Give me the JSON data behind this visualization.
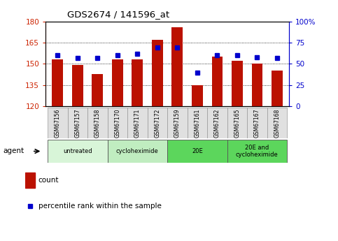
{
  "title": "GDS2674 / 141596_at",
  "samples": [
    "GSM67156",
    "GSM67157",
    "GSM67158",
    "GSM67170",
    "GSM67171",
    "GSM67172",
    "GSM67159",
    "GSM67161",
    "GSM67162",
    "GSM67165",
    "GSM67167",
    "GSM67168"
  ],
  "bar_values": [
    153,
    149,
    143,
    153,
    153,
    167,
    176,
    135,
    155,
    152,
    150,
    145
  ],
  "percentile_values": [
    60,
    57,
    57,
    60,
    62,
    69,
    69,
    40,
    60,
    60,
    58,
    57
  ],
  "bar_bottom": 120,
  "ylim_left": [
    120,
    180
  ],
  "ylim_right": [
    0,
    100
  ],
  "yticks_left": [
    120,
    135,
    150,
    165,
    180
  ],
  "yticks_right": [
    0,
    25,
    50,
    75,
    100
  ],
  "bar_color": "#bb1100",
  "dot_color": "#0000cc",
  "groups": [
    {
      "label": "untreated",
      "start": 0,
      "end": 3,
      "color": "#d8f5d8"
    },
    {
      "label": "cycloheximide",
      "start": 3,
      "end": 6,
      "color": "#c0edc0"
    },
    {
      "label": "20E",
      "start": 6,
      "end": 9,
      "color": "#5cd65c"
    },
    {
      "label": "20E and\ncycloheximide",
      "start": 9,
      "end": 12,
      "color": "#5cd65c"
    }
  ],
  "agent_label": "agent",
  "legend_count_label": "count",
  "legend_percentile_label": "percentile rank within the sample",
  "tick_label_color_left": "#cc2200",
  "tick_label_color_right": "#0000cc",
  "label_box_color": "#e0e0e0"
}
